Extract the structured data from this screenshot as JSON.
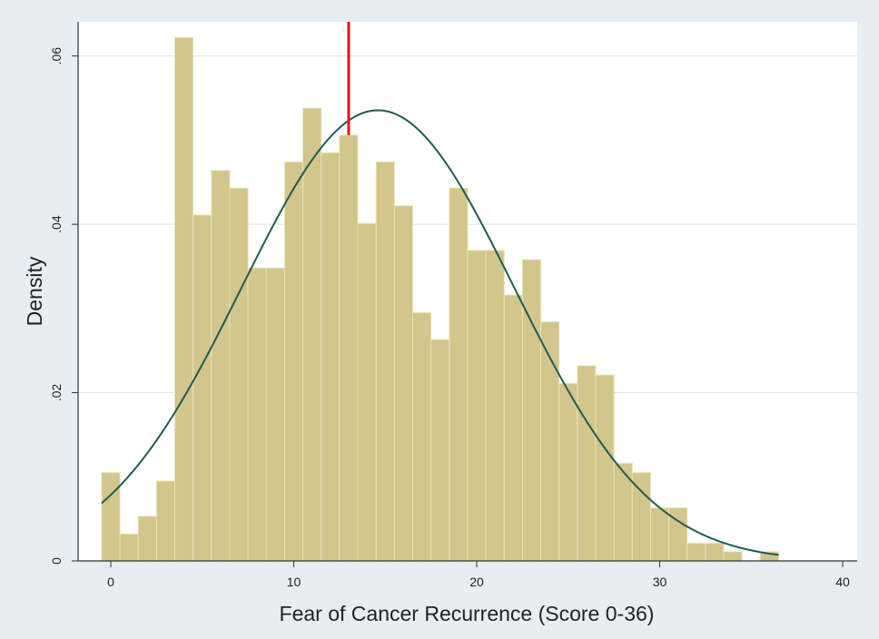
{
  "chart_data": {
    "type": "bar",
    "subtype": "histogram",
    "xlabel": "Fear of Cancer Recurrence (Score 0-36)",
    "ylabel": "Density",
    "xlim": [
      -1,
      40.5
    ],
    "ylim": [
      0,
      0.064
    ],
    "x_ticks": [
      0,
      10,
      20,
      30,
      40
    ],
    "x_tick_labels": [
      "0",
      "10",
      "20",
      "30",
      "40"
    ],
    "y_ticks": [
      0,
      0.02,
      0.04,
      0.06
    ],
    "y_tick_labels": [
      "0",
      ".02",
      ".04",
      ".06"
    ],
    "grid": "horizontal",
    "bin_width": 1,
    "bins": [
      {
        "x": 0,
        "density": 0.0105
      },
      {
        "x": 1,
        "density": 0.0032
      },
      {
        "x": 2,
        "density": 0.0053
      },
      {
        "x": 3,
        "density": 0.0095
      },
      {
        "x": 4,
        "density": 0.0622
      },
      {
        "x": 5,
        "density": 0.0411
      },
      {
        "x": 6,
        "density": 0.0464
      },
      {
        "x": 7,
        "density": 0.0443
      },
      {
        "x": 8,
        "density": 0.0348
      },
      {
        "x": 9,
        "density": 0.0348
      },
      {
        "x": 10,
        "density": 0.0474
      },
      {
        "x": 11,
        "density": 0.0538
      },
      {
        "x": 12,
        "density": 0.0485
      },
      {
        "x": 13,
        "density": 0.0506
      },
      {
        "x": 14,
        "density": 0.0401
      },
      {
        "x": 15,
        "density": 0.0474
      },
      {
        "x": 16,
        "density": 0.0422
      },
      {
        "x": 17,
        "density": 0.0295
      },
      {
        "x": 18,
        "density": 0.0263
      },
      {
        "x": 19,
        "density": 0.0443
      },
      {
        "x": 20,
        "density": 0.0369
      },
      {
        "x": 21,
        "density": 0.0369
      },
      {
        "x": 22,
        "density": 0.0316
      },
      {
        "x": 23,
        "density": 0.0358
      },
      {
        "x": 24,
        "density": 0.0284
      },
      {
        "x": 25,
        "density": 0.0211
      },
      {
        "x": 26,
        "density": 0.0232
      },
      {
        "x": 27,
        "density": 0.0221
      },
      {
        "x": 28,
        "density": 0.0116
      },
      {
        "x": 29,
        "density": 0.0105
      },
      {
        "x": 30,
        "density": 0.0063
      },
      {
        "x": 31,
        "density": 0.0063
      },
      {
        "x": 32,
        "density": 0.0021
      },
      {
        "x": 33,
        "density": 0.0021
      },
      {
        "x": 34,
        "density": 0.0011
      },
      {
        "x": 36,
        "density": 0.0011
      }
    ],
    "normal_curve": {
      "mean": 14.6,
      "sd": 7.45,
      "x_range": [
        -0.5,
        36.5
      ]
    },
    "reference_line": {
      "x": 13
    },
    "colors": {
      "background": "#e6eef3",
      "plot_area": "#ffffff",
      "bar_fill": "#d2c68c",
      "bar_stroke": "#ebe3b6",
      "curve": "#1f5c55",
      "reference_line": "#e8141b",
      "gridline": "#dde7ec",
      "axis": "#333333"
    }
  }
}
